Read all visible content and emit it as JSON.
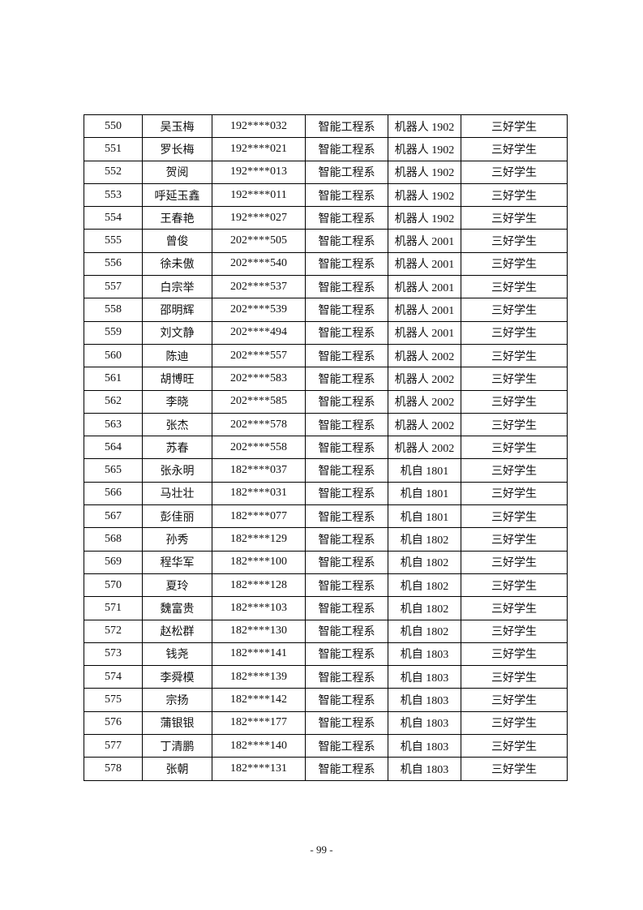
{
  "table": {
    "rows": [
      [
        "550",
        "吴玉梅",
        "192****032",
        "智能工程系",
        "机器人 1902",
        "三好学生"
      ],
      [
        "551",
        "罗长梅",
        "192****021",
        "智能工程系",
        "机器人 1902",
        "三好学生"
      ],
      [
        "552",
        "贺阅",
        "192****013",
        "智能工程系",
        "机器人 1902",
        "三好学生"
      ],
      [
        "553",
        "呼延玉鑫",
        "192****011",
        "智能工程系",
        "机器人 1902",
        "三好学生"
      ],
      [
        "554",
        "王春艳",
        "192****027",
        "智能工程系",
        "机器人 1902",
        "三好学生"
      ],
      [
        "555",
        "曾俊",
        "202****505",
        "智能工程系",
        "机器人 2001",
        "三好学生"
      ],
      [
        "556",
        "徐未傲",
        "202****540",
        "智能工程系",
        "机器人 2001",
        "三好学生"
      ],
      [
        "557",
        "白宗举",
        "202****537",
        "智能工程系",
        "机器人 2001",
        "三好学生"
      ],
      [
        "558",
        "邵明辉",
        "202****539",
        "智能工程系",
        "机器人 2001",
        "三好学生"
      ],
      [
        "559",
        "刘文静",
        "202****494",
        "智能工程系",
        "机器人 2001",
        "三好学生"
      ],
      [
        "560",
        "陈迪",
        "202****557",
        "智能工程系",
        "机器人 2002",
        "三好学生"
      ],
      [
        "561",
        "胡博旺",
        "202****583",
        "智能工程系",
        "机器人 2002",
        "三好学生"
      ],
      [
        "562",
        "李晓",
        "202****585",
        "智能工程系",
        "机器人 2002",
        "三好学生"
      ],
      [
        "563",
        "张杰",
        "202****578",
        "智能工程系",
        "机器人 2002",
        "三好学生"
      ],
      [
        "564",
        "苏春",
        "202****558",
        "智能工程系",
        "机器人 2002",
        "三好学生"
      ],
      [
        "565",
        "张永明",
        "182****037",
        "智能工程系",
        "机自 1801",
        "三好学生"
      ],
      [
        "566",
        "马壮壮",
        "182****031",
        "智能工程系",
        "机自 1801",
        "三好学生"
      ],
      [
        "567",
        "彭佳丽",
        "182****077",
        "智能工程系",
        "机自 1801",
        "三好学生"
      ],
      [
        "568",
        "孙秀",
        "182****129",
        "智能工程系",
        "机自 1802",
        "三好学生"
      ],
      [
        "569",
        "程华军",
        "182****100",
        "智能工程系",
        "机自 1802",
        "三好学生"
      ],
      [
        "570",
        "夏玲",
        "182****128",
        "智能工程系",
        "机自 1802",
        "三好学生"
      ],
      [
        "571",
        "魏富贵",
        "182****103",
        "智能工程系",
        "机自 1802",
        "三好学生"
      ],
      [
        "572",
        "赵松群",
        "182****130",
        "智能工程系",
        "机自 1802",
        "三好学生"
      ],
      [
        "573",
        "钱尧",
        "182****141",
        "智能工程系",
        "机自 1803",
        "三好学生"
      ],
      [
        "574",
        "李舜模",
        "182****139",
        "智能工程系",
        "机自 1803",
        "三好学生"
      ],
      [
        "575",
        "宗扬",
        "182****142",
        "智能工程系",
        "机自 1803",
        "三好学生"
      ],
      [
        "576",
        "蒲银银",
        "182****177",
        "智能工程系",
        "机自 1803",
        "三好学生"
      ],
      [
        "577",
        "丁清鹏",
        "182****140",
        "智能工程系",
        "机自 1803",
        "三好学生"
      ],
      [
        "578",
        "张朝",
        "182****131",
        "智能工程系",
        "机自 1803",
        "三好学生"
      ]
    ]
  },
  "footer": {
    "page_number": "- 99 -"
  }
}
